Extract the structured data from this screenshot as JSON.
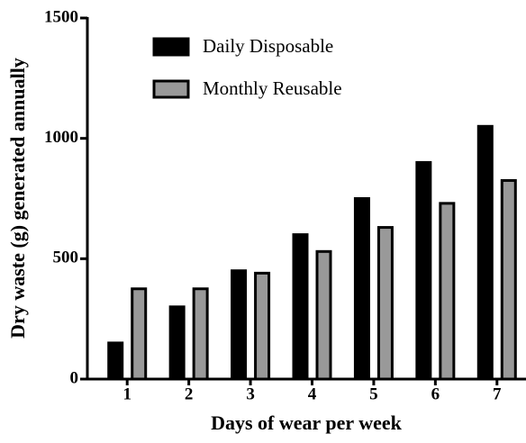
{
  "chart_data": {
    "type": "bar",
    "xlabel": "Days of wear per week",
    "ylabel": "Dry waste (g) generated annually",
    "categories": [
      "1",
      "2",
      "3",
      "4",
      "5",
      "6",
      "7"
    ],
    "series": [
      {
        "name": "Daily Disposable",
        "color": "#000000",
        "values": [
          150,
          300,
          450,
          600,
          750,
          900,
          1050
        ]
      },
      {
        "name": "Monthly Reusable",
        "color": "#999999",
        "values": [
          375,
          375,
          440,
          530,
          630,
          730,
          825
        ]
      }
    ],
    "ylim": [
      0,
      1500
    ],
    "yticks": [
      0,
      500,
      1000,
      1500
    ],
    "grid": false,
    "legend": "upper left"
  }
}
